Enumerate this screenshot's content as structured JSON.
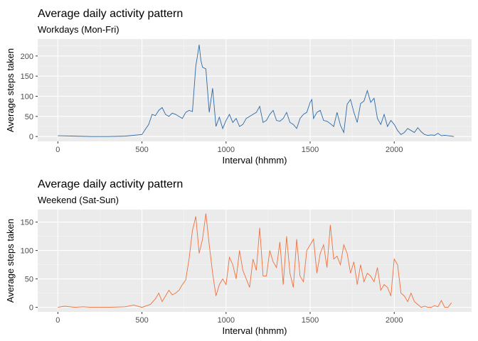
{
  "chart_data": [
    {
      "type": "line",
      "title": "Average daily activity pattern",
      "subtitle": "Workdays (Mon-Fri)",
      "xlabel": "Interval (hhmm)",
      "ylabel": "Average steps taken",
      "xlim": [
        -120,
        2460
      ],
      "ylim": [
        -12,
        242
      ],
      "xticks": [
        0,
        500,
        1000,
        1500,
        2000
      ],
      "yticks": [
        0,
        50,
        100,
        150,
        200
      ],
      "grid": true,
      "color": "#2B6AA8",
      "x": [
        0,
        100,
        200,
        300,
        400,
        500,
        520,
        540,
        560,
        580,
        600,
        620,
        640,
        660,
        680,
        700,
        720,
        740,
        760,
        780,
        800,
        820,
        830,
        840,
        850,
        860,
        880,
        900,
        920,
        940,
        960,
        980,
        1000,
        1020,
        1040,
        1060,
        1080,
        1100,
        1120,
        1140,
        1160,
        1180,
        1200,
        1220,
        1240,
        1260,
        1280,
        1300,
        1320,
        1340,
        1360,
        1380,
        1400,
        1420,
        1440,
        1460,
        1480,
        1500,
        1510,
        1520,
        1540,
        1560,
        1580,
        1600,
        1620,
        1640,
        1660,
        1680,
        1700,
        1720,
        1740,
        1760,
        1780,
        1800,
        1820,
        1840,
        1860,
        1880,
        1900,
        1920,
        1940,
        1960,
        1980,
        2000,
        2020,
        2040,
        2060,
        2080,
        2100,
        2120,
        2140,
        2160,
        2180,
        2200,
        2220,
        2240,
        2260,
        2280,
        2300,
        2320,
        2340,
        2355
      ],
      "y": [
        2,
        1,
        0,
        0,
        1,
        5,
        18,
        30,
        55,
        52,
        65,
        72,
        55,
        50,
        58,
        55,
        50,
        45,
        60,
        65,
        62,
        175,
        200,
        228,
        190,
        172,
        168,
        60,
        120,
        25,
        48,
        20,
        40,
        55,
        35,
        45,
        25,
        30,
        45,
        50,
        55,
        60,
        75,
        35,
        40,
        55,
        65,
        40,
        38,
        45,
        60,
        35,
        30,
        20,
        45,
        55,
        60,
        85,
        92,
        45,
        60,
        65,
        40,
        38,
        32,
        25,
        60,
        28,
        10,
        80,
        92,
        60,
        35,
        82,
        88,
        114,
        85,
        95,
        45,
        30,
        55,
        25,
        40,
        30,
        15,
        5,
        10,
        20,
        15,
        10,
        22,
        12,
        5,
        3,
        4,
        3,
        8,
        2,
        3,
        2,
        1,
        0
      ]
    },
    {
      "type": "line",
      "title": "Average daily activity pattern",
      "subtitle": "Weekend (Sat-Sun)",
      "xlabel": "Interval (hhmm)",
      "ylabel": "Average steps taken",
      "xlim": [
        -120,
        2460
      ],
      "ylim": [
        -8,
        172
      ],
      "xticks": [
        0,
        500,
        1000,
        1500,
        2000
      ],
      "yticks": [
        0,
        50,
        100,
        150
      ],
      "grid": true,
      "color": "#F0703C",
      "x": [
        0,
        40,
        100,
        150,
        200,
        300,
        400,
        450,
        500,
        550,
        580,
        600,
        620,
        640,
        660,
        680,
        700,
        720,
        740,
        760,
        780,
        800,
        820,
        840,
        860,
        880,
        900,
        920,
        940,
        960,
        980,
        1000,
        1020,
        1040,
        1060,
        1080,
        1100,
        1120,
        1140,
        1160,
        1180,
        1200,
        1220,
        1240,
        1260,
        1280,
        1300,
        1320,
        1340,
        1360,
        1380,
        1400,
        1420,
        1440,
        1460,
        1480,
        1500,
        1520,
        1540,
        1560,
        1580,
        1600,
        1620,
        1640,
        1660,
        1680,
        1700,
        1720,
        1740,
        1760,
        1780,
        1800,
        1820,
        1840,
        1860,
        1880,
        1900,
        1920,
        1940,
        1960,
        1980,
        2000,
        2020,
        2040,
        2060,
        2080,
        2100,
        2120,
        2140,
        2160,
        2180,
        2200,
        2220,
        2240,
        2260,
        2280,
        2300,
        2320,
        2340
      ],
      "y": [
        0,
        2,
        0,
        1,
        0,
        0,
        1,
        4,
        0,
        5,
        15,
        25,
        10,
        20,
        30,
        22,
        25,
        30,
        40,
        48,
        85,
        135,
        160,
        95,
        120,
        165,
        110,
        60,
        20,
        40,
        50,
        40,
        88,
        75,
        50,
        100,
        65,
        50,
        35,
        85,
        65,
        140,
        55,
        55,
        100,
        80,
        70,
        115,
        40,
        125,
        60,
        35,
        120,
        55,
        45,
        100,
        110,
        120,
        60,
        95,
        110,
        70,
        145,
        85,
        90,
        75,
        110,
        95,
        60,
        80,
        40,
        75,
        45,
        60,
        55,
        45,
        70,
        30,
        40,
        35,
        20,
        85,
        75,
        25,
        20,
        10,
        25,
        10,
        5,
        0,
        2,
        0,
        0,
        3,
        1,
        12,
        0,
        0,
        8
      ]
    }
  ]
}
